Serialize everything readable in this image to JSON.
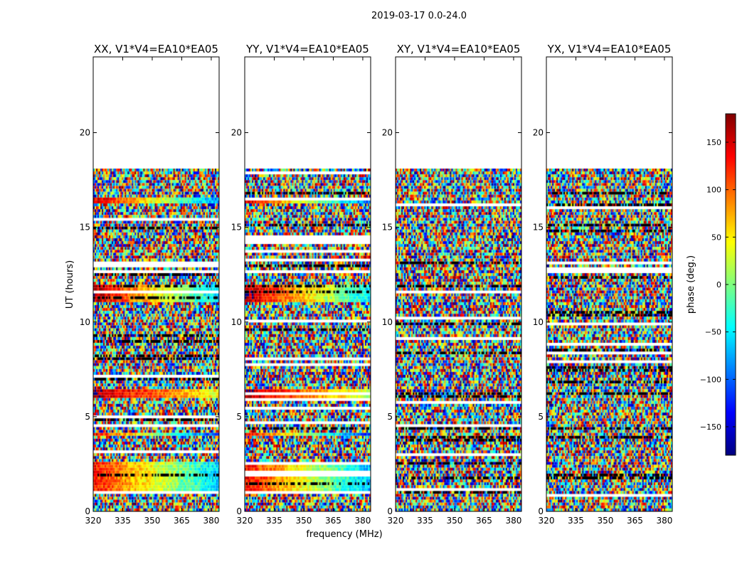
{
  "suptitle": "2019-03-17 0.0-24.0",
  "ylabel": "UT (hours)",
  "xlabel": "frequency (MHz)",
  "colorbar": {
    "label": "phase (deg.)",
    "range": [
      -180,
      180
    ],
    "ticks": [
      -150,
      -100,
      -50,
      0,
      50,
      100,
      150
    ],
    "tick_labels": [
      "−150",
      "−100",
      "−50",
      "0",
      "50",
      "100",
      "150"
    ],
    "colormap": "jet"
  },
  "chart_data": {
    "type": "heatmap",
    "xlim": [
      320,
      384
    ],
    "ylim": [
      0,
      24
    ],
    "xticks": [
      320,
      335,
      350,
      365,
      380
    ],
    "yticks": [
      0,
      5,
      10,
      15,
      20
    ],
    "xtick_labels": [
      "320",
      "335",
      "350",
      "365",
      "380"
    ],
    "ytick_labels": [
      "0",
      "5",
      "10",
      "15",
      "20"
    ],
    "data_extent_hours": [
      0,
      18.1
    ],
    "panels": [
      {
        "title": "XX, V1*V4=EA10*EA05",
        "coherent_bands": [
          {
            "t": [
              16.2,
              16.5
            ],
            "phase_start": 150,
            "phase_end": -80
          },
          {
            "t": [
              11.0,
              12.0
            ],
            "phase_start": 160,
            "phase_end": -60
          },
          {
            "t": [
              6.0,
              6.4
            ],
            "phase_start": 165,
            "phase_end": 40
          },
          {
            "t": [
              4.0,
              4.2
            ],
            "phase_start": 140,
            "phase_end": -120
          },
          {
            "t": [
              1.0,
              2.6
            ],
            "phase_start": 130,
            "phase_end": -60
          }
        ]
      },
      {
        "title": "YY, V1*V4=EA10*EA05",
        "coherent_bands": [
          {
            "t": [
              16.2,
              16.5
            ],
            "phase_start": 150,
            "phase_end": -100
          },
          {
            "t": [
              11.0,
              12.0
            ],
            "phase_start": 165,
            "phase_end": -50
          },
          {
            "t": [
              6.0,
              6.4
            ],
            "phase_start": 170,
            "phase_end": 20
          },
          {
            "t": [
              4.0,
              4.2
            ],
            "phase_start": 140,
            "phase_end": -130
          },
          {
            "t": [
              1.0,
              2.6
            ],
            "phase_start": 135,
            "phase_end": -70
          }
        ]
      },
      {
        "title": "XY, V1*V4=EA10*EA05",
        "coherent_bands": []
      },
      {
        "title": "YX, V1*V4=EA10*EA05",
        "coherent_bands": []
      }
    ]
  }
}
